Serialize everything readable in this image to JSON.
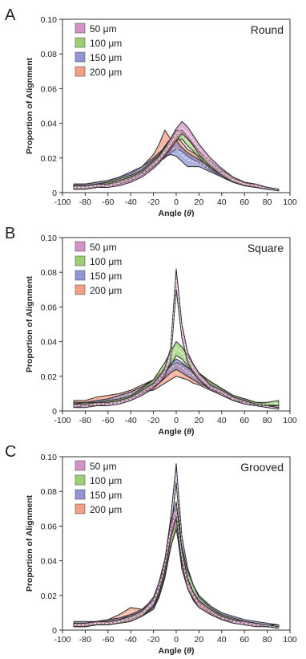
{
  "panels": [
    {
      "letter": "A",
      "shape": "Round",
      "chart_data": {
        "type": "area",
        "title": "Round",
        "xlabel_main": "Angle (",
        "xlabel_symbol": "θ",
        "xlabel_close": ")",
        "ylabel": "Proportion of Alignment",
        "xlim": [
          -100,
          100
        ],
        "ylim": [
          0,
          0.1
        ],
        "xticks": [
          "-100",
          "-80",
          "-60",
          "-40",
          "-20",
          "0",
          "20",
          "40",
          "60",
          "80",
          "100"
        ],
        "yticks": [
          "0",
          "0.02",
          "0.04",
          "0.06",
          "0.08",
          "0.10"
        ],
        "legend_position": "top-left",
        "x": [
          -90,
          -80,
          -70,
          -60,
          -50,
          -40,
          -30,
          -20,
          -15,
          -10,
          -5,
          0,
          5,
          10,
          15,
          20,
          30,
          40,
          50,
          60,
          70,
          80,
          90
        ],
        "series": [
          {
            "name": "50 μm",
            "color": "#c56fb5",
            "lower": [
              0.002,
              0.002,
              0.003,
              0.003,
              0.004,
              0.006,
              0.009,
              0.014,
              0.017,
              0.021,
              0.025,
              0.03,
              0.034,
              0.031,
              0.027,
              0.022,
              0.015,
              0.01,
              0.006,
              0.004,
              0.003,
              0.002,
              0.001
            ],
            "upper": [
              0.004,
              0.004,
              0.005,
              0.005,
              0.007,
              0.009,
              0.012,
              0.018,
              0.021,
              0.026,
              0.031,
              0.037,
              0.041,
              0.038,
              0.033,
              0.028,
              0.02,
              0.014,
              0.009,
              0.006,
              0.005,
              0.003,
              0.002
            ]
          },
          {
            "name": "100 μm",
            "color": "#7ac143",
            "lower": [
              0.002,
              0.002,
              0.003,
              0.004,
              0.005,
              0.007,
              0.01,
              0.015,
              0.018,
              0.022,
              0.026,
              0.03,
              0.031,
              0.027,
              0.024,
              0.02,
              0.014,
              0.01,
              0.006,
              0.004,
              0.003,
              0.002,
              0.001
            ],
            "upper": [
              0.004,
              0.004,
              0.005,
              0.006,
              0.008,
              0.01,
              0.013,
              0.019,
              0.022,
              0.027,
              0.031,
              0.036,
              0.036,
              0.032,
              0.028,
              0.024,
              0.018,
              0.013,
              0.009,
              0.006,
              0.004,
              0.003,
              0.002
            ]
          },
          {
            "name": "150 μm",
            "color": "#6b72c4",
            "lower": [
              0.003,
              0.003,
              0.004,
              0.005,
              0.006,
              0.008,
              0.011,
              0.016,
              0.019,
              0.021,
              0.022,
              0.021,
              0.018,
              0.015,
              0.015,
              0.015,
              0.012,
              0.009,
              0.006,
              0.004,
              0.003,
              0.002,
              0.002
            ],
            "upper": [
              0.005,
              0.005,
              0.006,
              0.007,
              0.009,
              0.012,
              0.015,
              0.02,
              0.023,
              0.026,
              0.028,
              0.03,
              0.026,
              0.023,
              0.021,
              0.019,
              0.015,
              0.012,
              0.008,
              0.006,
              0.004,
              0.003,
              0.002
            ]
          },
          {
            "name": "200 μm",
            "color": "#f07f5d",
            "lower": [
              0.003,
              0.003,
              0.004,
              0.005,
              0.006,
              0.008,
              0.011,
              0.015,
              0.018,
              0.02,
              0.023,
              0.025,
              0.024,
              0.021,
              0.019,
              0.017,
              0.013,
              0.009,
              0.006,
              0.004,
              0.003,
              0.002,
              0.002
            ],
            "upper": [
              0.005,
              0.005,
              0.006,
              0.007,
              0.009,
              0.011,
              0.015,
              0.022,
              0.028,
              0.036,
              0.031,
              0.033,
              0.029,
              0.025,
              0.023,
              0.021,
              0.016,
              0.012,
              0.008,
              0.006,
              0.004,
              0.003,
              0.002
            ]
          }
        ]
      }
    },
    {
      "letter": "B",
      "shape": "Square",
      "chart_data": {
        "type": "area",
        "title": "Square",
        "xlabel_main": "Angle (",
        "xlabel_symbol": "θ",
        "xlabel_close": ")",
        "ylabel": "Proportion of Alignment",
        "xlim": [
          -100,
          100
        ],
        "ylim": [
          0,
          0.1
        ],
        "xticks": [
          "-100",
          "-80",
          "-60",
          "-40",
          "-20",
          "0",
          "20",
          "40",
          "60",
          "80",
          "100"
        ],
        "yticks": [
          "0",
          "0.02",
          "0.04",
          "0.06",
          "0.08",
          "0.10"
        ],
        "legend_position": "top-left",
        "x": [
          -90,
          -80,
          -70,
          -60,
          -50,
          -40,
          -30,
          -20,
          -15,
          -10,
          -5,
          0,
          5,
          10,
          15,
          20,
          30,
          40,
          50,
          60,
          70,
          80,
          90
        ],
        "series": [
          {
            "name": "50 μm",
            "color": "#c56fb5",
            "lower": [
              0.002,
              0.002,
              0.003,
              0.003,
              0.004,
              0.006,
              0.009,
              0.013,
              0.016,
              0.02,
              0.028,
              0.07,
              0.042,
              0.028,
              0.022,
              0.018,
              0.012,
              0.009,
              0.006,
              0.004,
              0.003,
              0.002,
              0.001
            ],
            "upper": [
              0.004,
              0.004,
              0.005,
              0.005,
              0.006,
              0.008,
              0.012,
              0.016,
              0.02,
              0.025,
              0.036,
              0.082,
              0.05,
              0.034,
              0.027,
              0.022,
              0.015,
              0.012,
              0.008,
              0.006,
              0.004,
              0.003,
              0.002
            ]
          },
          {
            "name": "100 μm",
            "color": "#7ac143",
            "lower": [
              0.002,
              0.003,
              0.003,
              0.004,
              0.005,
              0.007,
              0.01,
              0.014,
              0.018,
              0.022,
              0.026,
              0.032,
              0.03,
              0.026,
              0.022,
              0.018,
              0.013,
              0.01,
              0.006,
              0.005,
              0.003,
              0.003,
              0.003
            ],
            "upper": [
              0.004,
              0.005,
              0.005,
              0.006,
              0.007,
              0.009,
              0.013,
              0.018,
              0.023,
              0.028,
              0.034,
              0.04,
              0.037,
              0.032,
              0.027,
              0.022,
              0.017,
              0.013,
              0.009,
              0.007,
              0.005,
              0.005,
              0.006
            ]
          },
          {
            "name": "150 μm",
            "color": "#6b72c4",
            "lower": [
              0.003,
              0.003,
              0.004,
              0.005,
              0.006,
              0.008,
              0.011,
              0.014,
              0.016,
              0.019,
              0.022,
              0.024,
              0.022,
              0.02,
              0.018,
              0.016,
              0.013,
              0.01,
              0.007,
              0.005,
              0.003,
              0.003,
              0.002
            ],
            "upper": [
              0.005,
              0.005,
              0.006,
              0.007,
              0.009,
              0.011,
              0.014,
              0.018,
              0.021,
              0.024,
              0.027,
              0.03,
              0.028,
              0.025,
              0.023,
              0.021,
              0.017,
              0.013,
              0.009,
              0.007,
              0.005,
              0.004,
              0.003
            ]
          },
          {
            "name": "200 μm",
            "color": "#f07f5d",
            "lower": [
              0.003,
              0.003,
              0.004,
              0.005,
              0.006,
              0.008,
              0.011,
              0.012,
              0.014,
              0.016,
              0.018,
              0.02,
              0.019,
              0.018,
              0.016,
              0.015,
              0.012,
              0.01,
              0.007,
              0.005,
              0.004,
              0.003,
              0.002
            ],
            "upper": [
              0.006,
              0.006,
              0.008,
              0.009,
              0.01,
              0.012,
              0.015,
              0.018,
              0.021,
              0.023,
              0.026,
              0.028,
              0.027,
              0.025,
              0.023,
              0.021,
              0.017,
              0.013,
              0.009,
              0.007,
              0.005,
              0.004,
              0.003
            ]
          }
        ]
      }
    },
    {
      "letter": "C",
      "shape": "Grooved",
      "chart_data": {
        "type": "area",
        "title": "Grooved",
        "xlabel_main": "Angle (",
        "xlabel_symbol": "θ",
        "xlabel_close": ")",
        "ylabel": "Proportion of Alignment",
        "xlim": [
          -100,
          100
        ],
        "ylim": [
          0,
          0.1
        ],
        "xticks": [
          "-100",
          "-80",
          "-60",
          "-40",
          "-20",
          "0",
          "20",
          "40",
          "60",
          "80",
          "100"
        ],
        "yticks": [
          "0",
          "0.02",
          "0.04",
          "0.06",
          "0.08",
          "0.10"
        ],
        "legend_position": "top-left",
        "x": [
          -90,
          -80,
          -70,
          -60,
          -50,
          -40,
          -30,
          -20,
          -15,
          -10,
          -5,
          0,
          5,
          10,
          15,
          20,
          30,
          40,
          50,
          60,
          70,
          80,
          90
        ],
        "series": [
          {
            "name": "50 μm",
            "color": "#c56fb5",
            "lower": [
              0.002,
              0.002,
              0.003,
              0.003,
              0.004,
              0.005,
              0.008,
              0.014,
              0.022,
              0.034,
              0.052,
              0.064,
              0.038,
              0.024,
              0.018,
              0.013,
              0.009,
              0.006,
              0.004,
              0.003,
              0.002,
              0.002,
              0.001
            ],
            "upper": [
              0.004,
              0.004,
              0.005,
              0.005,
              0.006,
              0.008,
              0.011,
              0.019,
              0.028,
              0.041,
              0.062,
              0.074,
              0.046,
              0.03,
              0.022,
              0.017,
              0.012,
              0.008,
              0.006,
              0.005,
              0.004,
              0.003,
              0.002
            ]
          },
          {
            "name": "100 μm",
            "color": "#7ac143",
            "lower": [
              0.002,
              0.002,
              0.003,
              0.003,
              0.004,
              0.005,
              0.008,
              0.013,
              0.02,
              0.031,
              0.048,
              0.058,
              0.04,
              0.028,
              0.02,
              0.015,
              0.01,
              0.007,
              0.005,
              0.004,
              0.003,
              0.002,
              0.002
            ],
            "upper": [
              0.004,
              0.004,
              0.005,
              0.005,
              0.006,
              0.008,
              0.011,
              0.017,
              0.025,
              0.037,
              0.055,
              0.066,
              0.048,
              0.034,
              0.026,
              0.019,
              0.013,
              0.009,
              0.007,
              0.005,
              0.004,
              0.003,
              0.003
            ]
          },
          {
            "name": "150 μm",
            "color": "#6b72c4",
            "lower": [
              0.003,
              0.003,
              0.003,
              0.004,
              0.005,
              0.006,
              0.009,
              0.014,
              0.021,
              0.033,
              0.055,
              0.085,
              0.046,
              0.03,
              0.021,
              0.016,
              0.011,
              0.008,
              0.006,
              0.004,
              0.003,
              0.003,
              0.002
            ],
            "upper": [
              0.005,
              0.005,
              0.005,
              0.006,
              0.007,
              0.009,
              0.012,
              0.018,
              0.026,
              0.04,
              0.064,
              0.096,
              0.054,
              0.036,
              0.026,
              0.02,
              0.014,
              0.01,
              0.008,
              0.006,
              0.005,
              0.004,
              0.003
            ]
          },
          {
            "name": "200 μm",
            "color": "#f07f5d",
            "lower": [
              0.002,
              0.002,
              0.003,
              0.004,
              0.006,
              0.009,
              0.008,
              0.012,
              0.019,
              0.03,
              0.047,
              0.06,
              0.035,
              0.024,
              0.017,
              0.013,
              0.009,
              0.006,
              0.005,
              0.004,
              0.003,
              0.002,
              0.002
            ],
            "upper": [
              0.004,
              0.004,
              0.005,
              0.006,
              0.009,
              0.013,
              0.012,
              0.017,
              0.025,
              0.038,
              0.058,
              0.07,
              0.044,
              0.03,
              0.022,
              0.017,
              0.012,
              0.009,
              0.007,
              0.005,
              0.004,
              0.003,
              0.003
            ]
          }
        ]
      }
    }
  ]
}
